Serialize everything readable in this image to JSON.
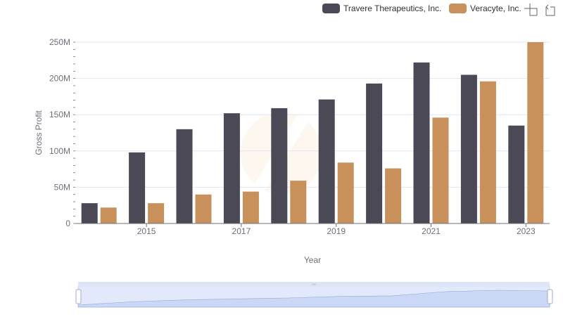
{
  "chart_data": {
    "type": "bar",
    "title": "",
    "xlabel": "Year",
    "ylabel": "Gross Profit",
    "categories": [
      "2014",
      "2015",
      "2016",
      "2017",
      "2018",
      "2019",
      "2020",
      "2021",
      "2022",
      "2023"
    ],
    "x_tick_labels": [
      "2015",
      "2017",
      "2019",
      "2021",
      "2023"
    ],
    "y_tick_labels": [
      "0",
      "50M",
      "100M",
      "150M",
      "200M",
      "250M"
    ],
    "ylim": [
      0,
      250000000
    ],
    "grid": true,
    "legend_position": "top-right",
    "series": [
      {
        "name": "Travere Therapeutics, Inc.",
        "color": "#4a4955",
        "values": [
          28000000,
          98000000,
          130000000,
          152000000,
          159000000,
          171000000,
          193000000,
          222000000,
          205000000,
          135000000
        ]
      },
      {
        "name": "Veracyte, Inc.",
        "color": "#c8915c",
        "values": [
          22000000,
          28000000,
          40000000,
          44000000,
          59000000,
          84000000,
          76000000,
          146000000,
          196000000,
          250000000
        ]
      }
    ]
  },
  "toolbox": {
    "zoom_icon": "zoom-select-icon",
    "restore_icon": "restore-icon"
  },
  "data_zoom": {
    "handle_icon": "grip-icon",
    "range_start": 0,
    "range_end": 1
  }
}
